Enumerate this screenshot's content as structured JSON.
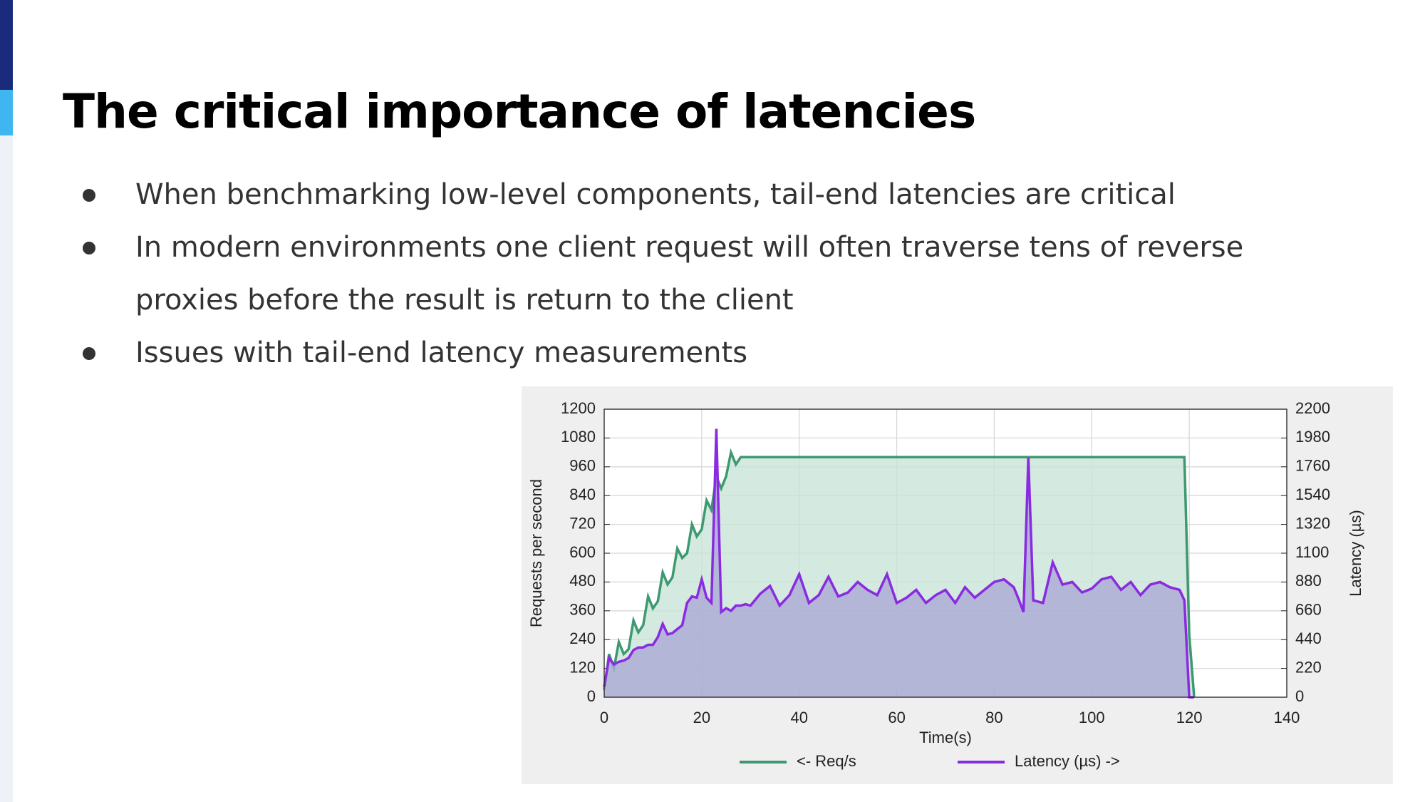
{
  "title": "The critical importance of latencies",
  "bullets": [
    "When benchmarking low-level components, tail-end latencies are critical",
    "In modern environments one client request will often traverse tens of reverse proxies before the result is return to the client",
    "Issues with tail-end latency measurements"
  ],
  "chart_data": {
    "type": "area",
    "x_label": "Time(s)",
    "y_label": "Requests per second",
    "y2_label": "Latency (µs)",
    "x": [
      0,
      1,
      2,
      3,
      4,
      5,
      6,
      7,
      8,
      9,
      10,
      11,
      12,
      13,
      14,
      15,
      16,
      17,
      18,
      19,
      20,
      21,
      22,
      23,
      24,
      25,
      26,
      27,
      28,
      29,
      30,
      32,
      34,
      36,
      38,
      40,
      42,
      44,
      46,
      48,
      50,
      52,
      54,
      56,
      58,
      60,
      62,
      64,
      66,
      68,
      70,
      72,
      74,
      76,
      78,
      80,
      82,
      84,
      85,
      86,
      87,
      88,
      90,
      92,
      94,
      96,
      98,
      100,
      102,
      104,
      106,
      108,
      110,
      112,
      114,
      116,
      118,
      119,
      120,
      121
    ],
    "series": [
      {
        "name": "<- Req/s",
        "color": "#3d9970",
        "fill": "#c9e3d7",
        "values": [
          30,
          180,
          120,
          230,
          180,
          200,
          320,
          270,
          300,
          420,
          370,
          400,
          520,
          470,
          500,
          620,
          580,
          600,
          720,
          670,
          700,
          820,
          780,
          920,
          870,
          920,
          1020,
          970,
          1000,
          1000,
          1000,
          1000,
          1000,
          1000,
          1000,
          1000,
          1000,
          1000,
          1000,
          1000,
          1000,
          1000,
          1000,
          1000,
          1000,
          1000,
          1000,
          1000,
          1000,
          1000,
          1000,
          1000,
          1000,
          1000,
          1000,
          1000,
          1000,
          1000,
          1000,
          1000,
          1000,
          1000,
          1000,
          1000,
          1000,
          1000,
          1000,
          1000,
          1000,
          1000,
          1000,
          1000,
          1000,
          1000,
          1000,
          1000,
          1000,
          1000,
          260,
          0
        ]
      },
      {
        "name": "Latency (µs) ->",
        "color": "#8a2be2",
        "fill": "#aba9d6",
        "axis": "y2",
        "values": [
          80,
          300,
          250,
          270,
          280,
          300,
          360,
          380,
          380,
          400,
          400,
          460,
          560,
          480,
          490,
          520,
          550,
          720,
          770,
          760,
          900,
          760,
          720,
          2050,
          650,
          680,
          660,
          700,
          700,
          710,
          700,
          790,
          850,
          700,
          780,
          940,
          720,
          780,
          920,
          770,
          800,
          880,
          820,
          780,
          940,
          720,
          760,
          820,
          720,
          780,
          820,
          720,
          840,
          760,
          820,
          880,
          900,
          840,
          750,
          650,
          1830,
          740,
          720,
          1030,
          860,
          880,
          800,
          830,
          900,
          920,
          820,
          880,
          780,
          860,
          880,
          840,
          820,
          740,
          0,
          0
        ]
      }
    ],
    "xlim": [
      0,
      140
    ],
    "xticks": [
      0,
      20,
      40,
      60,
      80,
      100,
      120,
      140
    ],
    "ylim": [
      0,
      1200
    ],
    "yticks": [
      0,
      120,
      240,
      360,
      480,
      600,
      720,
      840,
      960,
      1080,
      1200
    ],
    "y2lim": [
      0,
      2200
    ],
    "y2ticks": [
      0,
      220,
      440,
      660,
      880,
      1100,
      1320,
      1540,
      1760,
      1980,
      2200
    ],
    "grid": true,
    "legend": "bottom"
  }
}
